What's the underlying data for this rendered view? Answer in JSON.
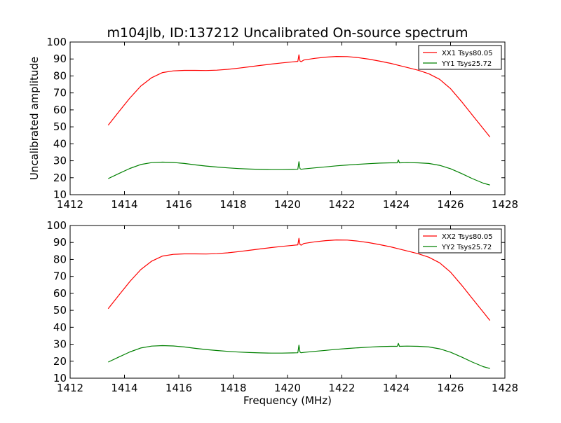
{
  "chart_data": {
    "title": "m104jlb, ID:137212 Uncalibrated On-source spectrum",
    "ylabel": "Uncalibrated amplitude",
    "xlabel": "Frequency (MHz)",
    "colors": {
      "xx": "#ff0000",
      "yy": "#008000"
    },
    "panels": [
      {
        "type": "line",
        "xlim": [
          1412,
          1428
        ],
        "ylim": [
          10,
          100
        ],
        "xticks": [
          "1412",
          "1414",
          "1416",
          "1418",
          "1420",
          "1422",
          "1424",
          "1426",
          "1428"
        ],
        "yticks": [
          "10",
          "20",
          "30",
          "40",
          "50",
          "60",
          "70",
          "80",
          "90",
          "100"
        ],
        "legend": "top-right",
        "series": [
          {
            "name": "XX1 Tsys80.05",
            "color": "#ff0000",
            "x": [
              1413.4,
              1413.8,
              1414.2,
              1414.6,
              1415.0,
              1415.4,
              1415.8,
              1416.2,
              1416.6,
              1417.0,
              1417.4,
              1417.8,
              1418.2,
              1418.6,
              1419.0,
              1419.4,
              1419.8,
              1420.2,
              1420.38,
              1420.42,
              1420.46,
              1420.5,
              1420.6,
              1421.0,
              1421.4,
              1421.8,
              1422.2,
              1422.6,
              1423.0,
              1423.4,
              1423.8,
              1424.1,
              1424.4,
              1424.8,
              1425.2,
              1425.6,
              1426.0,
              1426.4,
              1426.8,
              1427.2,
              1427.45
            ],
            "y": [
              51,
              59,
              67,
              74,
              79,
              82,
              83,
              83.3,
              83.3,
              83.2,
              83.4,
              83.9,
              84.6,
              85.4,
              86.2,
              87,
              87.7,
              88.3,
              88.6,
              92.5,
              88.8,
              88.4,
              89.4,
              90.4,
              91.1,
              91.5,
              91.4,
              90.8,
              89.9,
              88.7,
              87.4,
              86.2,
              85,
              83.4,
              81.3,
              78,
              72.5,
              65,
              57,
              49,
              44
            ]
          },
          {
            "name": "YY1 Tsys25.72",
            "color": "#008000",
            "x": [
              1413.4,
              1413.8,
              1414.2,
              1414.6,
              1415.0,
              1415.4,
              1415.8,
              1416.2,
              1416.6,
              1417.0,
              1417.4,
              1417.8,
              1418.2,
              1418.6,
              1419.0,
              1419.4,
              1419.8,
              1420.2,
              1420.38,
              1420.42,
              1420.46,
              1420.5,
              1420.6,
              1421.0,
              1421.4,
              1421.8,
              1422.2,
              1422.6,
              1423.0,
              1423.4,
              1423.8,
              1424.04,
              1424.08,
              1424.12,
              1424.4,
              1424.8,
              1425.2,
              1425.6,
              1426.0,
              1426.4,
              1426.8,
              1427.2,
              1427.45
            ],
            "y": [
              19.5,
              22.5,
              25.5,
              27.8,
              28.9,
              29.2,
              29,
              28.4,
              27.6,
              26.9,
              26.3,
              25.8,
              25.4,
              25.1,
              24.9,
              24.8,
              24.8,
              24.9,
              25,
              29.5,
              25.4,
              25,
              25.2,
              25.8,
              26.4,
              27,
              27.5,
              27.9,
              28.3,
              28.6,
              28.8,
              28.8,
              30.5,
              28.8,
              28.9,
              28.8,
              28.4,
              27.3,
              25.3,
              22.5,
              19.5,
              16.8,
              15.7
            ]
          }
        ]
      },
      {
        "type": "line",
        "xlim": [
          1412,
          1428
        ],
        "ylim": [
          10,
          100
        ],
        "xticks": [
          "1412",
          "1414",
          "1416",
          "1418",
          "1420",
          "1422",
          "1424",
          "1426",
          "1428"
        ],
        "yticks": [
          "10",
          "20",
          "30",
          "40",
          "50",
          "60",
          "70",
          "80",
          "90",
          "100"
        ],
        "legend": "top-right",
        "series": [
          {
            "name": "XX2 Tsys80.05",
            "color": "#ff0000",
            "x": [
              1413.4,
              1413.8,
              1414.2,
              1414.6,
              1415.0,
              1415.4,
              1415.8,
              1416.2,
              1416.6,
              1417.0,
              1417.4,
              1417.8,
              1418.2,
              1418.6,
              1419.0,
              1419.4,
              1419.8,
              1420.2,
              1420.38,
              1420.42,
              1420.46,
              1420.5,
              1420.6,
              1421.0,
              1421.4,
              1421.8,
              1422.2,
              1422.6,
              1423.0,
              1423.4,
              1423.8,
              1424.1,
              1424.4,
              1424.8,
              1425.2,
              1425.6,
              1426.0,
              1426.4,
              1426.8,
              1427.2,
              1427.45
            ],
            "y": [
              51,
              59,
              67,
              74,
              79,
              82,
              83,
              83.3,
              83.3,
              83.2,
              83.4,
              83.9,
              84.6,
              85.4,
              86.2,
              87,
              87.7,
              88.3,
              88.6,
              92.5,
              88.8,
              88.4,
              89.4,
              90.4,
              91.1,
              91.5,
              91.4,
              90.8,
              89.9,
              88.7,
              87.4,
              86.2,
              85,
              83.4,
              81.3,
              78,
              72.5,
              65,
              57,
              49,
              44
            ]
          },
          {
            "name": "YY2 Tsys25.72",
            "color": "#008000",
            "x": [
              1413.4,
              1413.8,
              1414.2,
              1414.6,
              1415.0,
              1415.4,
              1415.8,
              1416.2,
              1416.6,
              1417.0,
              1417.4,
              1417.8,
              1418.2,
              1418.6,
              1419.0,
              1419.4,
              1419.8,
              1420.2,
              1420.38,
              1420.42,
              1420.46,
              1420.5,
              1420.6,
              1421.0,
              1421.4,
              1421.8,
              1422.2,
              1422.6,
              1423.0,
              1423.4,
              1423.8,
              1424.04,
              1424.08,
              1424.12,
              1424.4,
              1424.8,
              1425.2,
              1425.6,
              1426.0,
              1426.4,
              1426.8,
              1427.2,
              1427.45
            ],
            "y": [
              19.5,
              22.5,
              25.5,
              27.8,
              28.9,
              29.2,
              29,
              28.4,
              27.6,
              26.9,
              26.3,
              25.8,
              25.4,
              25.1,
              24.9,
              24.8,
              24.8,
              24.9,
              25,
              29.5,
              25.4,
              25,
              25.2,
              25.8,
              26.4,
              27,
              27.5,
              27.9,
              28.3,
              28.6,
              28.8,
              28.8,
              30.5,
              28.8,
              28.9,
              28.8,
              28.4,
              27.3,
              25.3,
              22.5,
              19.5,
              16.8,
              15.7
            ]
          }
        ]
      }
    ]
  }
}
